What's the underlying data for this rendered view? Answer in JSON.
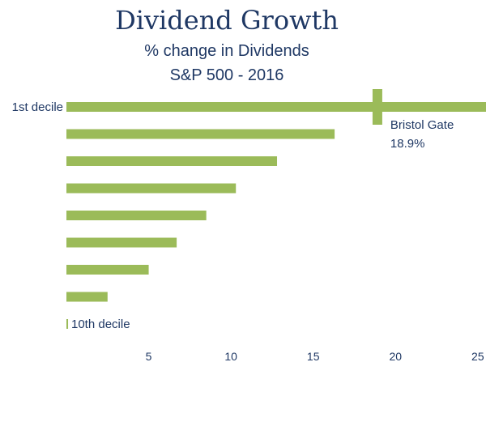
{
  "chart_data": {
    "type": "bar",
    "orientation": "horizontal",
    "title": "Dividend Growth",
    "subtitle": [
      "% change in Dividends",
      "S&P 500 - 2016"
    ],
    "categories": [
      "1st decile",
      "",
      "",
      "",
      "",
      "",
      "",
      "",
      "10th decile"
    ],
    "values": [
      25.5,
      16.3,
      12.8,
      10.3,
      8.5,
      6.7,
      5.0,
      2.5,
      0.1
    ],
    "xticks": [
      5,
      10,
      15,
      20,
      25
    ],
    "xlim": [
      0,
      25.5
    ],
    "grid": false,
    "bar_color": "#9bbb59",
    "annotation": {
      "text": "Bristol Gate",
      "value_label": "18.9%",
      "x": 18.9,
      "category": "1st decile"
    },
    "text_color": "#1f3864"
  }
}
